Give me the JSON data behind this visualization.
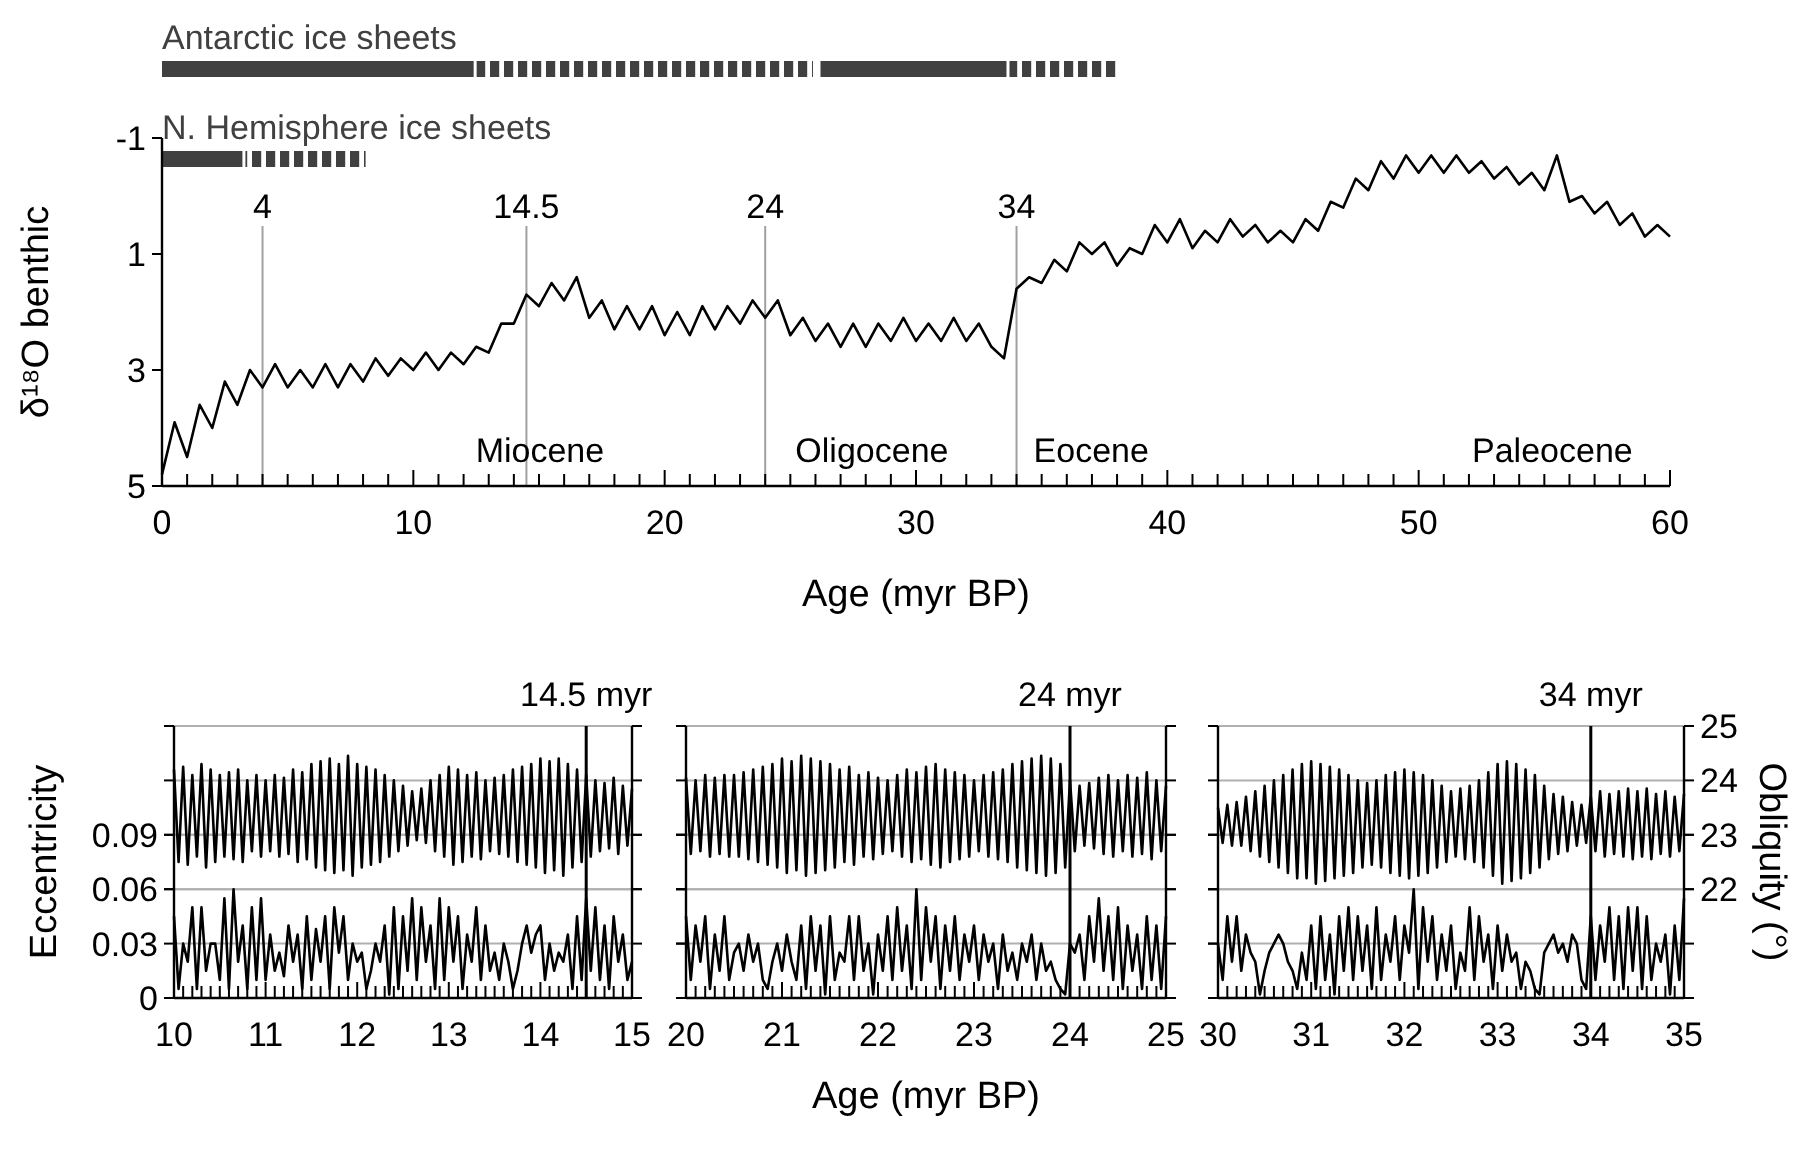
{
  "chart_data": [
    {
      "type": "bar",
      "orientation": "horizontal",
      "xlim": [
        0,
        60
      ],
      "tick_labels": false,
      "categories": [
        "Antarctic ice sheets",
        "N. Hemisphere ice sheets"
      ],
      "series": [
        {
          "color": "#404040",
          "base": [
            0,
            0
          ],
          "values": [
            12.4,
            3.2
          ]
        },
        {
          "color": "#404040",
          "line_style": "dashed",
          "base": [
            12.4,
            3.2
          ],
          "values": [
            13.5,
            4.9
          ]
        },
        {
          "color": "#404040",
          "base": [
            26.2,
            null
          ],
          "values": [
            7.4,
            null
          ]
        },
        {
          "color": "#404040",
          "line_style": "dashed",
          "base": [
            33.6,
            null
          ],
          "values": [
            4.4,
            null
          ]
        }
      ]
    },
    {
      "type": "line",
      "xlabel": "Age (myr BP)",
      "ylabel": "δ¹⁸O benthic",
      "xlim": [
        0,
        60
      ],
      "ylim": [
        5,
        -1
      ],
      "yticks": [
        -1,
        1,
        3,
        5
      ],
      "xticks": [
        0,
        {
          "value": 1,
          "label": null
        },
        {
          "value": 2,
          "label": null
        },
        {
          "value": 3,
          "label": null
        },
        {
          "value": 4,
          "label": null
        },
        {
          "value": 5,
          "label": null
        },
        {
          "value": 6,
          "label": null
        },
        {
          "value": 7,
          "label": null
        },
        {
          "value": 8,
          "label": null
        },
        {
          "value": 9,
          "label": null
        },
        10,
        {
          "value": 11,
          "label": null
        },
        {
          "value": 12,
          "label": null
        },
        {
          "value": 13,
          "label": null
        },
        {
          "value": 14,
          "label": null
        },
        {
          "value": 15,
          "label": null
        },
        {
          "value": 16,
          "label": null
        },
        {
          "value": 17,
          "label": null
        },
        {
          "value": 18,
          "label": null
        },
        {
          "value": 19,
          "label": null
        },
        20,
        {
          "value": 21,
          "label": null
        },
        {
          "value": 22,
          "label": null
        },
        {
          "value": 23,
          "label": null
        },
        {
          "value": 24,
          "label": null
        },
        {
          "value": 25,
          "label": null
        },
        {
          "value": 26,
          "label": null
        },
        {
          "value": 27,
          "label": null
        },
        {
          "value": 28,
          "label": null
        },
        {
          "value": 29,
          "label": null
        },
        30,
        {
          "value": 31,
          "label": null
        },
        {
          "value": 32,
          "label": null
        },
        {
          "value": 33,
          "label": null
        },
        {
          "value": 34,
          "label": null
        },
        {
          "value": 35,
          "label": null
        },
        {
          "value": 36,
          "label": null
        },
        {
          "value": 37,
          "label": null
        },
        {
          "value": 38,
          "label": null
        },
        {
          "value": 39,
          "label": null
        },
        40,
        {
          "value": 41,
          "label": null
        },
        {
          "value": 42,
          "label": null
        },
        {
          "value": 43,
          "label": null
        },
        {
          "value": 44,
          "label": null
        },
        {
          "value": 45,
          "label": null
        },
        {
          "value": 46,
          "label": null
        },
        {
          "value": 47,
          "label": null
        },
        {
          "value": 48,
          "label": null
        },
        {
          "value": 49,
          "label": null
        },
        50,
        {
          "value": 51,
          "label": null
        },
        {
          "value": 52,
          "label": null
        },
        {
          "value": 53,
          "label": null
        },
        {
          "value": 54,
          "label": null
        },
        {
          "value": 55,
          "label": null
        },
        {
          "value": 56,
          "label": null
        },
        {
          "value": 57,
          "label": null
        },
        {
          "value": 58,
          "label": null
        },
        {
          "value": 59,
          "label": null
        },
        60
      ],
      "x": [
        0,
        0.5,
        1,
        1.5,
        2,
        2.5,
        3,
        3.5,
        4,
        4.5,
        5,
        5.5,
        6,
        6.5,
        7,
        7.5,
        8,
        8.5,
        9,
        9.5,
        10,
        10.5,
        11,
        11.5,
        12,
        12.5,
        13,
        13.5,
        14,
        14.5,
        15,
        15.5,
        16,
        16.5,
        17,
        17.5,
        18,
        18.5,
        19,
        19.5,
        20,
        20.5,
        21,
        21.5,
        22,
        22.5,
        23,
        23.5,
        24,
        24.5,
        25,
        25.5,
        26,
        26.5,
        27,
        27.5,
        28,
        28.5,
        29,
        29.5,
        30,
        30.5,
        31,
        31.5,
        32,
        32.5,
        33,
        33.5,
        34,
        34.5,
        35,
        35.5,
        36,
        36.5,
        37,
        37.5,
        38,
        38.5,
        39,
        39.5,
        40,
        40.5,
        41,
        41.5,
        42,
        42.5,
        43,
        43.5,
        44,
        44.5,
        45,
        45.5,
        46,
        46.5,
        47,
        47.5,
        48,
        48.5,
        49,
        49.5,
        50,
        50.5,
        51,
        51.5,
        52,
        52.5,
        53,
        53.5,
        54,
        54.5,
        55,
        55.5,
        56,
        56.5,
        57,
        57.5,
        58,
        58.5,
        59,
        59.5,
        60
      ],
      "series": [
        {
          "color": "#000000",
          "values": [
            4.8,
            3.9,
            4.5,
            3.6,
            4.0,
            3.2,
            3.6,
            3.0,
            3.3,
            2.9,
            3.3,
            3.0,
            3.3,
            2.9,
            3.3,
            2.9,
            3.2,
            2.8,
            3.1,
            2.8,
            3.0,
            2.7,
            3.0,
            2.7,
            2.9,
            2.6,
            2.7,
            2.2,
            2.2,
            1.7,
            1.9,
            1.5,
            1.8,
            1.4,
            2.1,
            1.8,
            2.3,
            1.9,
            2.3,
            1.9,
            2.4,
            2.0,
            2.4,
            1.9,
            2.3,
            1.9,
            2.2,
            1.8,
            2.1,
            1.8,
            2.4,
            2.1,
            2.5,
            2.2,
            2.6,
            2.2,
            2.6,
            2.2,
            2.5,
            2.1,
            2.5,
            2.2,
            2.5,
            2.1,
            2.5,
            2.2,
            2.6,
            2.8,
            1.6,
            1.4,
            1.5,
            1.1,
            1.3,
            0.8,
            1.0,
            0.8,
            1.2,
            0.9,
            1.0,
            0.5,
            0.8,
            0.4,
            0.9,
            0.6,
            0.8,
            0.4,
            0.7,
            0.5,
            0.8,
            0.6,
            0.8,
            0.4,
            0.6,
            0.1,
            0.2,
            -0.3,
            -0.1,
            -0.6,
            -0.3,
            -0.7,
            -0.4,
            -0.7,
            -0.4,
            -0.7,
            -0.4,
            -0.6,
            -0.3,
            -0.5,
            -0.2,
            -0.4,
            -0.1,
            -0.7,
            0.1,
            0.0,
            0.3,
            0.1,
            0.5,
            0.3,
            0.7,
            0.5,
            0.7
          ]
        }
      ],
      "ref_lines": [
        {
          "axis": "x",
          "value": 4,
          "label": "4",
          "color": "#a0a0a0"
        },
        {
          "axis": "x",
          "value": 14.5,
          "label": "14.5",
          "color": "#a0a0a0"
        },
        {
          "axis": "x",
          "value": 24,
          "label": "24",
          "color": "#a0a0a0"
        },
        {
          "axis": "x",
          "value": 34,
          "label": "34",
          "color": "#a0a0a0"
        }
      ],
      "annotations": [
        "Miocene",
        "Oligocene",
        "Eocene",
        "Paleocene"
      ]
    },
    {
      "type": "line",
      "ylabel": "Eccentricity",
      "xlim": [
        10,
        15
      ],
      "ylim": [
        0,
        0.15
      ],
      "y2lim": [
        20,
        25
      ],
      "grid": "y",
      "tick_labels": "xy",
      "yticks": [
        0,
        0.03,
        0.06,
        0.09
      ],
      "xticks": [
        10,
        {
          "value": 10.1,
          "label": null
        },
        {
          "value": 10.2,
          "label": null
        },
        {
          "value": 10.3,
          "label": null
        },
        {
          "value": 10.4,
          "label": null
        },
        {
          "value": 10.5,
          "label": null
        },
        {
          "value": 10.6,
          "label": null
        },
        {
          "value": 10.7,
          "label": null
        },
        {
          "value": 10.8,
          "label": null
        },
        {
          "value": 10.9,
          "label": null
        },
        11,
        {
          "value": 11.1,
          "label": null
        },
        {
          "value": 11.2,
          "label": null
        },
        {
          "value": 11.3,
          "label": null
        },
        {
          "value": 11.4,
          "label": null
        },
        {
          "value": 11.5,
          "label": null
        },
        {
          "value": 11.6,
          "label": null
        },
        {
          "value": 11.7,
          "label": null
        },
        {
          "value": 11.8,
          "label": null
        },
        {
          "value": 11.9,
          "label": null
        },
        12,
        {
          "value": 12.1,
          "label": null
        },
        {
          "value": 12.2,
          "label": null
        },
        {
          "value": 12.3,
          "label": null
        },
        {
          "value": 12.4,
          "label": null
        },
        {
          "value": 12.5,
          "label": null
        },
        {
          "value": 12.6,
          "label": null
        },
        {
          "value": 12.7,
          "label": null
        },
        {
          "value": 12.8,
          "label": null
        },
        {
          "value": 12.9,
          "label": null
        },
        13,
        {
          "value": 13.1,
          "label": null
        },
        {
          "value": 13.2,
          "label": null
        },
        {
          "value": 13.3,
          "label": null
        },
        {
          "value": 13.4,
          "label": null
        },
        {
          "value": 13.5,
          "label": null
        },
        {
          "value": 13.6,
          "label": null
        },
        {
          "value": 13.7,
          "label": null
        },
        {
          "value": 13.8,
          "label": null
        },
        {
          "value": 13.9,
          "label": null
        },
        14,
        {
          "value": 14.1,
          "label": null
        },
        {
          "value": 14.2,
          "label": null
        },
        {
          "value": 14.3,
          "label": null
        },
        {
          "value": 14.4,
          "label": null
        },
        {
          "value": 14.5,
          "label": null
        },
        {
          "value": 14.6,
          "label": null
        },
        {
          "value": 14.7,
          "label": null
        },
        {
          "value": 14.8,
          "label": null
        },
        {
          "value": 14.9,
          "label": null
        },
        15
      ],
      "x": [
        10,
        10.05,
        10.1,
        10.15,
        10.2,
        10.25,
        10.3,
        10.35,
        10.4,
        10.45,
        10.5,
        10.55,
        10.6,
        10.65,
        10.7,
        10.75,
        10.8,
        10.85,
        10.9,
        10.95,
        11,
        11.05,
        11.1,
        11.15,
        11.2,
        11.25,
        11.3,
        11.35,
        11.4,
        11.45,
        11.5,
        11.55,
        11.6,
        11.65,
        11.7,
        11.75,
        11.8,
        11.85,
        11.9,
        11.95,
        12,
        12.05,
        12.1,
        12.15,
        12.2,
        12.25,
        12.3,
        12.35,
        12.4,
        12.45,
        12.5,
        12.55,
        12.6,
        12.65,
        12.7,
        12.75,
        12.8,
        12.85,
        12.9,
        12.95,
        13,
        13.05,
        13.1,
        13.15,
        13.2,
        13.25,
        13.3,
        13.35,
        13.4,
        13.45,
        13.5,
        13.55,
        13.6,
        13.65,
        13.7,
        13.75,
        13.8,
        13.85,
        13.9,
        13.95,
        14,
        14.05,
        14.1,
        14.15,
        14.2,
        14.25,
        14.3,
        14.35,
        14.4,
        14.45,
        14.5,
        14.55,
        14.6,
        14.65,
        14.7,
        14.75,
        14.8,
        14.85,
        14.9,
        14.95,
        15
      ],
      "series": [
        {
          "color": "#000000",
          "axis": "y2",
          "values": [
            24.2,
            22.5,
            24.25,
            22.45,
            24.1,
            22.6,
            24.3,
            22.4,
            24.2,
            22.5,
            24.1,
            22.6,
            24.15,
            22.55,
            24.2,
            22.5,
            24.0,
            22.7,
            24.1,
            22.6,
            24.0,
            22.7,
            24.1,
            22.6,
            24.05,
            22.65,
            24.2,
            22.5,
            24.15,
            22.55,
            24.3,
            22.4,
            24.35,
            22.35,
            24.4,
            22.3,
            24.3,
            22.35,
            24.45,
            22.25,
            24.3,
            22.4,
            24.25,
            22.45,
            24.2,
            22.5,
            24.1,
            22.6,
            24.0,
            22.7,
            23.9,
            22.8,
            23.8,
            22.9,
            23.85,
            22.85,
            24.0,
            22.7,
            24.1,
            22.6,
            24.25,
            22.45,
            24.2,
            22.5,
            24.1,
            22.6,
            24.15,
            22.55,
            24.0,
            22.7,
            24.05,
            22.65,
            24.1,
            22.6,
            24.2,
            22.5,
            24.25,
            22.45,
            24.3,
            22.4,
            24.4,
            22.3,
            24.35,
            22.35,
            24.4,
            22.25,
            24.3,
            22.4,
            24.2,
            22.5,
            24.1,
            22.6,
            24.0,
            22.7,
            23.95,
            22.75,
            24.05,
            22.65,
            23.9,
            22.8,
            23.85
          ]
        },
        {
          "color": "#000000",
          "values": [
            0.045,
            0.005,
            0.03,
            0.02,
            0.05,
            0.005,
            0.05,
            0.015,
            0.03,
            0.03,
            0.01,
            0.055,
            0.005,
            0.06,
            0.02,
            0.04,
            0.005,
            0.05,
            0.01,
            0.055,
            0.01,
            0.035,
            0.015,
            0.025,
            0.012,
            0.04,
            0.02,
            0.035,
            0.005,
            0.045,
            0.01,
            0.038,
            0.02,
            0.045,
            0.005,
            0.05,
            0.025,
            0.045,
            0.01,
            0.03,
            0.02,
            0.025,
            0.005,
            0.015,
            0.03,
            0.02,
            0.04,
            0.002,
            0.05,
            0.005,
            0.045,
            0.015,
            0.055,
            0.01,
            0.05,
            0.02,
            0.04,
            0.005,
            0.055,
            0.01,
            0.05,
            0.02,
            0.045,
            0.005,
            0.035,
            0.02,
            0.05,
            0.01,
            0.04,
            0.015,
            0.025,
            0.01,
            0.03,
            0.02,
            0.005,
            0.015,
            0.03,
            0.04,
            0.025,
            0.035,
            0.04,
            0.01,
            0.03,
            0.015,
            0.025,
            0.02,
            0.035,
            0.005,
            0.045,
            0.01,
            0.055,
            0.015,
            0.05,
            0.01,
            0.04,
            0.005,
            0.045,
            0.02,
            0.035,
            0.01,
            0.02
          ]
        }
      ],
      "ref_lines": [
        {
          "axis": "x",
          "value": 14.5,
          "label": "14.5 myr",
          "color": "#000000"
        }
      ]
    },
    {
      "type": "line",
      "xlabel": "Age (myr BP)",
      "xlim": [
        20,
        25
      ],
      "ylim": [
        0,
        0.15
      ],
      "y2lim": [
        20,
        25
      ],
      "grid": "y",
      "tick_labels": "x",
      "xticks": [
        20,
        {
          "value": 20.1,
          "label": null
        },
        {
          "value": 20.2,
          "label": null
        },
        {
          "value": 20.3,
          "label": null
        },
        {
          "value": 20.4,
          "label": null
        },
        {
          "value": 20.5,
          "label": null
        },
        {
          "value": 20.6,
          "label": null
        },
        {
          "value": 20.7,
          "label": null
        },
        {
          "value": 20.8,
          "label": null
        },
        {
          "value": 20.9,
          "label": null
        },
        21,
        {
          "value": 21.1,
          "label": null
        },
        {
          "value": 21.2,
          "label": null
        },
        {
          "value": 21.3,
          "label": null
        },
        {
          "value": 21.4,
          "label": null
        },
        {
          "value": 21.5,
          "label": null
        },
        {
          "value": 21.6,
          "label": null
        },
        {
          "value": 21.7,
          "label": null
        },
        {
          "value": 21.8,
          "label": null
        },
        {
          "value": 21.9,
          "label": null
        },
        22,
        {
          "value": 22.1,
          "label": null
        },
        {
          "value": 22.2,
          "label": null
        },
        {
          "value": 22.3,
          "label": null
        },
        {
          "value": 22.4,
          "label": null
        },
        {
          "value": 22.5,
          "label": null
        },
        {
          "value": 22.6,
          "label": null
        },
        {
          "value": 22.7,
          "label": null
        },
        {
          "value": 22.8,
          "label": null
        },
        {
          "value": 22.9,
          "label": null
        },
        23,
        {
          "value": 23.1,
          "label": null
        },
        {
          "value": 23.2,
          "label": null
        },
        {
          "value": 23.3,
          "label": null
        },
        {
          "value": 23.4,
          "label": null
        },
        {
          "value": 23.5,
          "label": null
        },
        {
          "value": 23.6,
          "label": null
        },
        {
          "value": 23.7,
          "label": null
        },
        {
          "value": 23.8,
          "label": null
        },
        {
          "value": 23.9,
          "label": null
        },
        24,
        {
          "value": 24.1,
          "label": null
        },
        {
          "value": 24.2,
          "label": null
        },
        {
          "value": 24.3,
          "label": null
        },
        {
          "value": 24.4,
          "label": null
        },
        {
          "value": 24.5,
          "label": null
        },
        {
          "value": 24.6,
          "label": null
        },
        {
          "value": 24.7,
          "label": null
        },
        {
          "value": 24.8,
          "label": null
        },
        {
          "value": 24.9,
          "label": null
        },
        25
      ],
      "x": [
        20,
        20.05,
        20.1,
        20.15,
        20.2,
        20.25,
        20.3,
        20.35,
        20.4,
        20.45,
        20.5,
        20.55,
        20.6,
        20.65,
        20.7,
        20.75,
        20.8,
        20.85,
        20.9,
        20.95,
        21,
        21.05,
        21.1,
        21.15,
        21.2,
        21.25,
        21.3,
        21.35,
        21.4,
        21.45,
        21.5,
        21.55,
        21.6,
        21.65,
        21.7,
        21.75,
        21.8,
        21.85,
        21.9,
        21.95,
        22,
        22.05,
        22.1,
        22.15,
        22.2,
        22.25,
        22.3,
        22.35,
        22.4,
        22.45,
        22.5,
        22.55,
        22.6,
        22.65,
        22.7,
        22.75,
        22.8,
        22.85,
        22.9,
        22.95,
        23,
        23.05,
        23.1,
        23.15,
        23.2,
        23.25,
        23.3,
        23.35,
        23.4,
        23.45,
        23.5,
        23.55,
        23.6,
        23.65,
        23.7,
        23.75,
        23.8,
        23.85,
        23.9,
        23.95,
        24,
        24.05,
        24.1,
        24.15,
        24.2,
        24.25,
        24.3,
        24.35,
        24.4,
        24.45,
        24.5,
        24.55,
        24.6,
        24.65,
        24.7,
        24.75,
        24.8,
        24.85,
        24.9,
        24.95,
        25
      ],
      "series": [
        {
          "color": "#000000",
          "axis": "y2",
          "values": [
            24.05,
            22.65,
            24.0,
            22.7,
            24.1,
            22.6,
            24.05,
            22.65,
            24.1,
            22.6,
            24.1,
            22.6,
            24.15,
            22.55,
            24.2,
            22.5,
            24.25,
            22.45,
            24.3,
            22.4,
            24.4,
            22.3,
            24.35,
            22.35,
            24.45,
            22.25,
            24.4,
            22.3,
            24.35,
            22.35,
            24.3,
            22.4,
            24.2,
            22.5,
            24.25,
            22.45,
            24.1,
            22.6,
            24.15,
            22.55,
            24.05,
            22.65,
            24.0,
            22.7,
            24.1,
            22.6,
            24.2,
            22.5,
            24.15,
            22.55,
            24.25,
            22.45,
            24.3,
            22.4,
            24.2,
            22.5,
            24.15,
            22.55,
            24.1,
            22.6,
            24.0,
            22.7,
            24.1,
            22.6,
            24.15,
            22.55,
            24.2,
            22.5,
            24.3,
            22.4,
            24.35,
            22.35,
            24.4,
            22.3,
            24.45,
            22.25,
            24.4,
            22.3,
            24.3,
            22.4,
            24.0,
            22.7,
            23.9,
            22.8,
            23.95,
            22.75,
            24.05,
            22.65,
            24.1,
            22.6,
            24.0,
            22.7,
            24.1,
            22.6,
            24.05,
            22.65,
            24.15,
            22.55,
            24.0,
            22.7,
            23.9
          ]
        },
        {
          "color": "#000000",
          "values": [
            0.045,
            0.01,
            0.04,
            0.02,
            0.045,
            0.005,
            0.035,
            0.015,
            0.045,
            0.01,
            0.025,
            0.03,
            0.015,
            0.035,
            0.02,
            0.03,
            0.01,
            0.005,
            0.02,
            0.03,
            0.015,
            0.035,
            0.02,
            0.01,
            0.04,
            0.005,
            0.045,
            0.015,
            0.04,
            0.002,
            0.045,
            0.01,
            0.025,
            0.02,
            0.045,
            0.01,
            0.045,
            0.015,
            0.03,
            0.002,
            0.035,
            0.015,
            0.045,
            0.01,
            0.05,
            0.015,
            0.04,
            0.005,
            0.06,
            0.01,
            0.05,
            0.02,
            0.045,
            0.005,
            0.04,
            0.015,
            0.045,
            0.01,
            0.035,
            0.02,
            0.04,
            0.01,
            0.035,
            0.02,
            0.03,
            0.005,
            0.035,
            0.015,
            0.025,
            0.01,
            0.03,
            0.02,
            0.035,
            0.01,
            0.03,
            0.015,
            0.02,
            0.01,
            0.005,
            0.002,
            0.03,
            0.025,
            0.035,
            0.01,
            0.045,
            0.02,
            0.055,
            0.015,
            0.045,
            0.01,
            0.05,
            0.005,
            0.04,
            0.015,
            0.035,
            0.005,
            0.045,
            0.01,
            0.04,
            0.005,
            0.045
          ]
        }
      ],
      "ref_lines": [
        {
          "axis": "x",
          "value": 24,
          "label": "24 myr",
          "color": "#000000"
        }
      ]
    },
    {
      "type": "line",
      "y2label": "Obliquity (°)",
      "xlim": [
        30,
        35
      ],
      "ylim": [
        0,
        0.15
      ],
      "y2lim": [
        20,
        25
      ],
      "grid": "y",
      "tick_labels": "xy2",
      "y2ticks": [
        22,
        23,
        24,
        25
      ],
      "xticks": [
        30,
        {
          "value": 30.1,
          "label": null
        },
        {
          "value": 30.2,
          "label": null
        },
        {
          "value": 30.3,
          "label": null
        },
        {
          "value": 30.4,
          "label": null
        },
        {
          "value": 30.5,
          "label": null
        },
        {
          "value": 30.6,
          "label": null
        },
        {
          "value": 30.7,
          "label": null
        },
        {
          "value": 30.8,
          "label": null
        },
        {
          "value": 30.9,
          "label": null
        },
        31,
        {
          "value": 31.1,
          "label": null
        },
        {
          "value": 31.2,
          "label": null
        },
        {
          "value": 31.3,
          "label": null
        },
        {
          "value": 31.4,
          "label": null
        },
        {
          "value": 31.5,
          "label": null
        },
        {
          "value": 31.6,
          "label": null
        },
        {
          "value": 31.7,
          "label": null
        },
        {
          "value": 31.8,
          "label": null
        },
        {
          "value": 31.9,
          "label": null
        },
        32,
        {
          "value": 32.1,
          "label": null
        },
        {
          "value": 32.2,
          "label": null
        },
        {
          "value": 32.3,
          "label": null
        },
        {
          "value": 32.4,
          "label": null
        },
        {
          "value": 32.5,
          "label": null
        },
        {
          "value": 32.6,
          "label": null
        },
        {
          "value": 32.7,
          "label": null
        },
        {
          "value": 32.8,
          "label": null
        },
        {
          "value": 32.9,
          "label": null
        },
        33,
        {
          "value": 33.1,
          "label": null
        },
        {
          "value": 33.2,
          "label": null
        },
        {
          "value": 33.3,
          "label": null
        },
        {
          "value": 33.4,
          "label": null
        },
        {
          "value": 33.5,
          "label": null
        },
        {
          "value": 33.6,
          "label": null
        },
        {
          "value": 33.7,
          "label": null
        },
        {
          "value": 33.8,
          "label": null
        },
        {
          "value": 33.9,
          "label": null
        },
        34,
        {
          "value": 34.1,
          "label": null
        },
        {
          "value": 34.2,
          "label": null
        },
        {
          "value": 34.3,
          "label": null
        },
        {
          "value": 34.4,
          "label": null
        },
        {
          "value": 34.5,
          "label": null
        },
        {
          "value": 34.6,
          "label": null
        },
        {
          "value": 34.7,
          "label": null
        },
        {
          "value": 34.8,
          "label": null
        },
        {
          "value": 34.9,
          "label": null
        },
        35
      ],
      "x": [
        30,
        30.05,
        30.1,
        30.15,
        30.2,
        30.25,
        30.3,
        30.35,
        30.4,
        30.45,
        30.5,
        30.55,
        30.6,
        30.65,
        30.7,
        30.75,
        30.8,
        30.85,
        30.9,
        30.95,
        31,
        31.05,
        31.1,
        31.15,
        31.2,
        31.25,
        31.3,
        31.35,
        31.4,
        31.45,
        31.5,
        31.55,
        31.6,
        31.65,
        31.7,
        31.75,
        31.8,
        31.85,
        31.9,
        31.95,
        32,
        32.05,
        32.1,
        32.15,
        32.2,
        32.25,
        32.3,
        32.35,
        32.4,
        32.45,
        32.5,
        32.55,
        32.6,
        32.65,
        32.7,
        32.75,
        32.8,
        32.85,
        32.9,
        32.95,
        33,
        33.05,
        33.1,
        33.15,
        33.2,
        33.25,
        33.3,
        33.35,
        33.4,
        33.45,
        33.5,
        33.55,
        33.6,
        33.65,
        33.7,
        33.75,
        33.8,
        33.85,
        33.9,
        33.95,
        34,
        34.05,
        34.1,
        34.15,
        34.2,
        34.25,
        34.3,
        34.35,
        34.4,
        34.45,
        34.5,
        34.55,
        34.6,
        34.65,
        34.7,
        34.75,
        34.8,
        34.85,
        34.9,
        34.95,
        35
      ],
      "series": [
        {
          "color": "#000000",
          "axis": "y2",
          "values": [
            23.5,
            22.85,
            23.55,
            22.8,
            23.6,
            22.8,
            23.7,
            22.7,
            23.8,
            22.6,
            23.9,
            22.5,
            24.0,
            22.4,
            24.1,
            22.3,
            24.2,
            22.2,
            24.3,
            22.2,
            24.35,
            22.1,
            24.3,
            22.15,
            24.25,
            22.2,
            24.2,
            22.25,
            24.1,
            22.3,
            24.0,
            22.4,
            23.95,
            22.45,
            24.0,
            22.4,
            24.1,
            22.3,
            24.15,
            22.25,
            24.2,
            22.2,
            24.15,
            22.25,
            24.1,
            22.3,
            24.0,
            22.4,
            23.9,
            22.5,
            23.8,
            22.6,
            23.85,
            22.55,
            23.9,
            22.5,
            24.0,
            22.4,
            24.15,
            22.25,
            24.3,
            22.1,
            24.35,
            22.15,
            24.3,
            22.2,
            24.2,
            22.3,
            24.1,
            22.4,
            23.9,
            22.55,
            23.75,
            22.65,
            23.7,
            22.7,
            23.6,
            22.8,
            23.55,
            22.85,
            23.7,
            22.7,
            23.8,
            22.6,
            23.75,
            22.65,
            23.8,
            22.6,
            23.85,
            22.55,
            23.8,
            22.6,
            23.85,
            22.55,
            23.75,
            22.65,
            23.8,
            22.6,
            23.7,
            22.7,
            23.75
          ]
        },
        {
          "color": "#000000",
          "values": [
            0.03,
            0.01,
            0.045,
            0.02,
            0.045,
            0.015,
            0.035,
            0.025,
            0.02,
            0.002,
            0.015,
            0.025,
            0.03,
            0.035,
            0.03,
            0.02,
            0.015,
            0.005,
            0.025,
            0.01,
            0.04,
            0.005,
            0.045,
            0.01,
            0.035,
            0.002,
            0.045,
            0.015,
            0.05,
            0.01,
            0.045,
            0.015,
            0.04,
            0.005,
            0.05,
            0.01,
            0.035,
            0.02,
            0.045,
            0.01,
            0.04,
            0.025,
            0.06,
            0.005,
            0.05,
            0.02,
            0.045,
            0.01,
            0.035,
            0.015,
            0.04,
            0.005,
            0.025,
            0.015,
            0.05,
            0.01,
            0.045,
            0.02,
            0.035,
            0.005,
            0.04,
            0.015,
            0.035,
            0.02,
            0.025,
            0.005,
            0.02,
            0.015,
            0.005,
            0.002,
            0.025,
            0.03,
            0.035,
            0.025,
            0.03,
            0.02,
            0.035,
            0.03,
            0.01,
            0.005,
            0.045,
            0.01,
            0.04,
            0.02,
            0.05,
            0.01,
            0.045,
            0.005,
            0.05,
            0.015,
            0.05,
            0.005,
            0.045,
            0.01,
            0.03,
            0.02,
            0.035,
            0.002,
            0.04,
            0.01,
            0.055
          ]
        }
      ],
      "ref_lines": [
        {
          "axis": "x",
          "value": 34,
          "label": "34 myr",
          "color": "#000000"
        }
      ]
    }
  ]
}
